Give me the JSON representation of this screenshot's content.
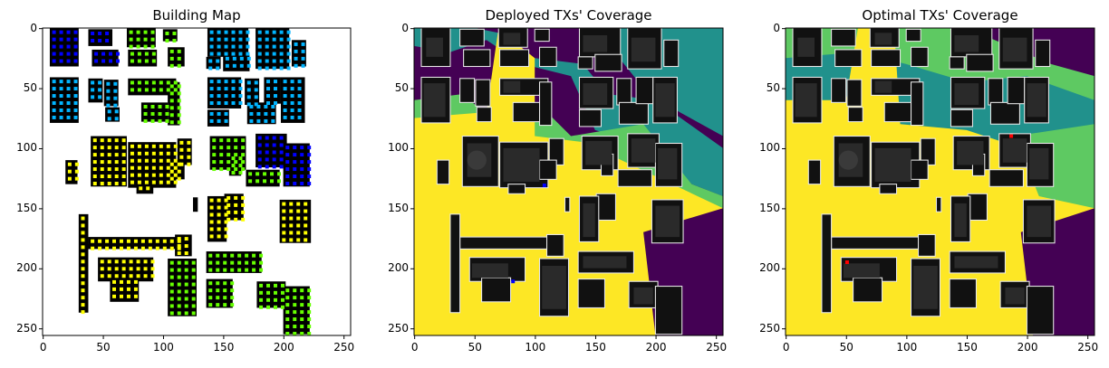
{
  "figure": {
    "panels": [
      {
        "title": "Building Map"
      },
      {
        "title": "Deployed TXs' Coverage"
      },
      {
        "title": "Optimal TXs' Coverage"
      }
    ]
  },
  "chart_data": [
    {
      "type": "heatmap",
      "title": "Building Map",
      "xlabel": "",
      "ylabel": "",
      "x_range": [
        0,
        255
      ],
      "y_range": [
        255,
        0
      ],
      "x_ticks": [
        "0",
        "50",
        "100",
        "150",
        "200",
        "250"
      ],
      "y_ticks": [
        "0",
        "50",
        "100",
        "150",
        "200",
        "250"
      ],
      "grid": false,
      "background_color": "#ffffff",
      "building_color": "#000000",
      "marker_colors": [
        "#0000ff",
        "#00b4ff",
        "#66ff00",
        "#ffff00"
      ]
    },
    {
      "type": "heatmap",
      "title": "Deployed TXs' Coverage",
      "xlabel": "",
      "ylabel": "",
      "x_range": [
        0,
        255
      ],
      "y_range": [
        255,
        0
      ],
      "x_ticks": [
        "0",
        "50",
        "100",
        "150",
        "200",
        "250"
      ],
      "y_ticks": [
        "0",
        "50",
        "100",
        "150",
        "200",
        "250"
      ],
      "grid": false,
      "colors": [
        "#440154",
        "#21918c",
        "#5ec962",
        "#fde725"
      ],
      "transmitter_color": "#0000ff",
      "transmitters": [
        [
          108,
          131
        ],
        [
          82,
          211
        ]
      ]
    },
    {
      "type": "heatmap",
      "title": "Optimal TXs' Coverage",
      "xlabel": "",
      "ylabel": "",
      "x_range": [
        0,
        255
      ],
      "y_range": [
        255,
        0
      ],
      "x_ticks": [
        "0",
        "50",
        "100",
        "150",
        "200",
        "250"
      ],
      "y_ticks": [
        "0",
        "50",
        "100",
        "150",
        "200",
        "250"
      ],
      "grid": false,
      "colors": [
        "#440154",
        "#21918c",
        "#5ec962",
        "#fde725"
      ],
      "transmitter_color": "#ff0000",
      "transmitters": [
        [
          187,
          90
        ],
        [
          51,
          195
        ]
      ]
    }
  ]
}
